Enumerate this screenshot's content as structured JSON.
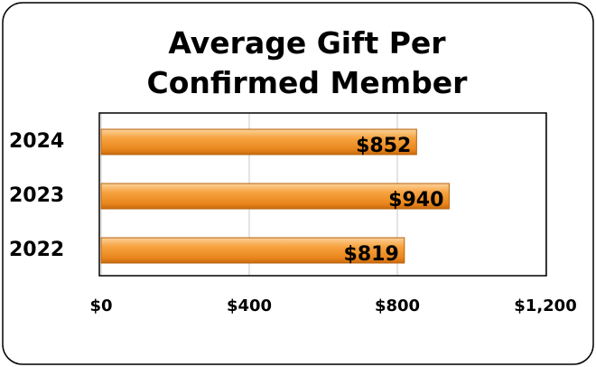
{
  "chart_data": {
    "type": "bar",
    "orientation": "horizontal",
    "title": "Average Gift Per Confirmed Member",
    "categories": [
      "2024",
      "2023",
      "2022"
    ],
    "values": [
      852,
      940,
      819
    ],
    "value_labels": [
      "$852",
      "$940",
      "$819"
    ],
    "color": "#f39a2e",
    "xlim": [
      0,
      1200
    ],
    "xticks": [
      {
        "value": 0,
        "label": "$0"
      },
      {
        "value": 400,
        "label": "$400"
      },
      {
        "value": 800,
        "label": "$800"
      },
      {
        "value": 1200,
        "label": "$1,200"
      }
    ],
    "grid": true
  }
}
